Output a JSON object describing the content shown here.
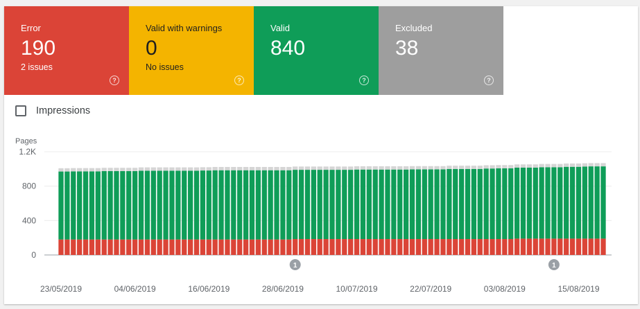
{
  "tiles": [
    {
      "label": "Error",
      "value": "190",
      "sub": "2 issues",
      "color": "#db4437"
    },
    {
      "label": "Valid with warnings",
      "value": "0",
      "sub": "No issues",
      "color": "#f4b400"
    },
    {
      "label": "Valid",
      "value": "840",
      "sub": "",
      "color": "#0f9d58"
    },
    {
      "label": "Excluded",
      "value": "38",
      "sub": "",
      "color": "#9e9e9e"
    }
  ],
  "help_icon": "help-circle-icon",
  "impressions": {
    "label": "Impressions",
    "checked": false
  },
  "chart_data": {
    "type": "bar",
    "stacked": true,
    "ylabel": "Pages",
    "ylim": [
      0,
      1200
    ],
    "yticks": [
      "0",
      "400",
      "800",
      "1.2K"
    ],
    "ytick_values": [
      0,
      400,
      800,
      1200
    ],
    "xtick_labels": [
      "23/05/2019",
      "04/06/2019",
      "16/06/2019",
      "28/06/2019",
      "10/07/2019",
      "22/07/2019",
      "03/08/2019",
      "15/08/2019"
    ],
    "xtick_indices": [
      0,
      12,
      24,
      36,
      48,
      60,
      72,
      84
    ],
    "grid": true,
    "annotations": [
      {
        "label": "1",
        "index": 38
      },
      {
        "label": "1",
        "index": 80
      }
    ],
    "series_colors": {
      "Error": "#db4437",
      "Valid": "#0f9d58",
      "Excluded": "#d5d5d5"
    },
    "series": [
      {
        "name": "Error",
        "values": [
          180,
          180,
          180,
          180,
          180,
          180,
          180,
          180,
          180,
          180,
          180,
          180,
          180,
          180,
          180,
          180,
          180,
          180,
          180,
          180,
          180,
          180,
          180,
          180,
          180,
          180,
          180,
          180,
          180,
          180,
          180,
          180,
          180,
          180,
          180,
          180,
          180,
          180,
          185,
          185,
          185,
          185,
          185,
          185,
          185,
          185,
          185,
          185,
          185,
          185,
          185,
          185,
          185,
          185,
          185,
          185,
          185,
          185,
          185,
          185,
          185,
          185,
          185,
          185,
          185,
          185,
          185,
          185,
          185,
          185,
          185,
          185,
          185,
          185,
          190,
          190,
          190,
          190,
          190,
          190,
          190,
          190,
          190,
          190,
          190,
          190,
          190,
          190,
          190
        ]
      },
      {
        "name": "Valid",
        "values": [
          790,
          790,
          792,
          792,
          792,
          792,
          792,
          795,
          795,
          795,
          795,
          795,
          795,
          800,
          800,
          800,
          800,
          800,
          800,
          800,
          800,
          800,
          800,
          802,
          802,
          805,
          805,
          805,
          805,
          805,
          805,
          805,
          805,
          805,
          805,
          805,
          805,
          805,
          805,
          805,
          805,
          805,
          805,
          805,
          805,
          805,
          805,
          805,
          808,
          808,
          808,
          808,
          808,
          808,
          808,
          808,
          808,
          810,
          810,
          810,
          810,
          810,
          810,
          815,
          815,
          815,
          815,
          815,
          815,
          820,
          820,
          822,
          822,
          822,
          825,
          825,
          825,
          825,
          830,
          830,
          830,
          830,
          835,
          835,
          835,
          838,
          840,
          840,
          840
        ]
      },
      {
        "name": "Excluded",
        "values": [
          38,
          38,
          38,
          38,
          38,
          38,
          38,
          38,
          38,
          38,
          38,
          38,
          38,
          38,
          38,
          38,
          38,
          38,
          38,
          38,
          38,
          38,
          38,
          38,
          38,
          38,
          38,
          38,
          38,
          38,
          38,
          38,
          38,
          38,
          38,
          38,
          38,
          38,
          38,
          38,
          38,
          38,
          38,
          38,
          38,
          38,
          38,
          38,
          38,
          38,
          38,
          38,
          38,
          38,
          38,
          38,
          38,
          38,
          38,
          38,
          38,
          38,
          38,
          38,
          38,
          38,
          38,
          38,
          38,
          38,
          38,
          38,
          38,
          38,
          38,
          38,
          38,
          38,
          38,
          38,
          38,
          38,
          38,
          38,
          38,
          38,
          38,
          38,
          38
        ]
      }
    ]
  }
}
